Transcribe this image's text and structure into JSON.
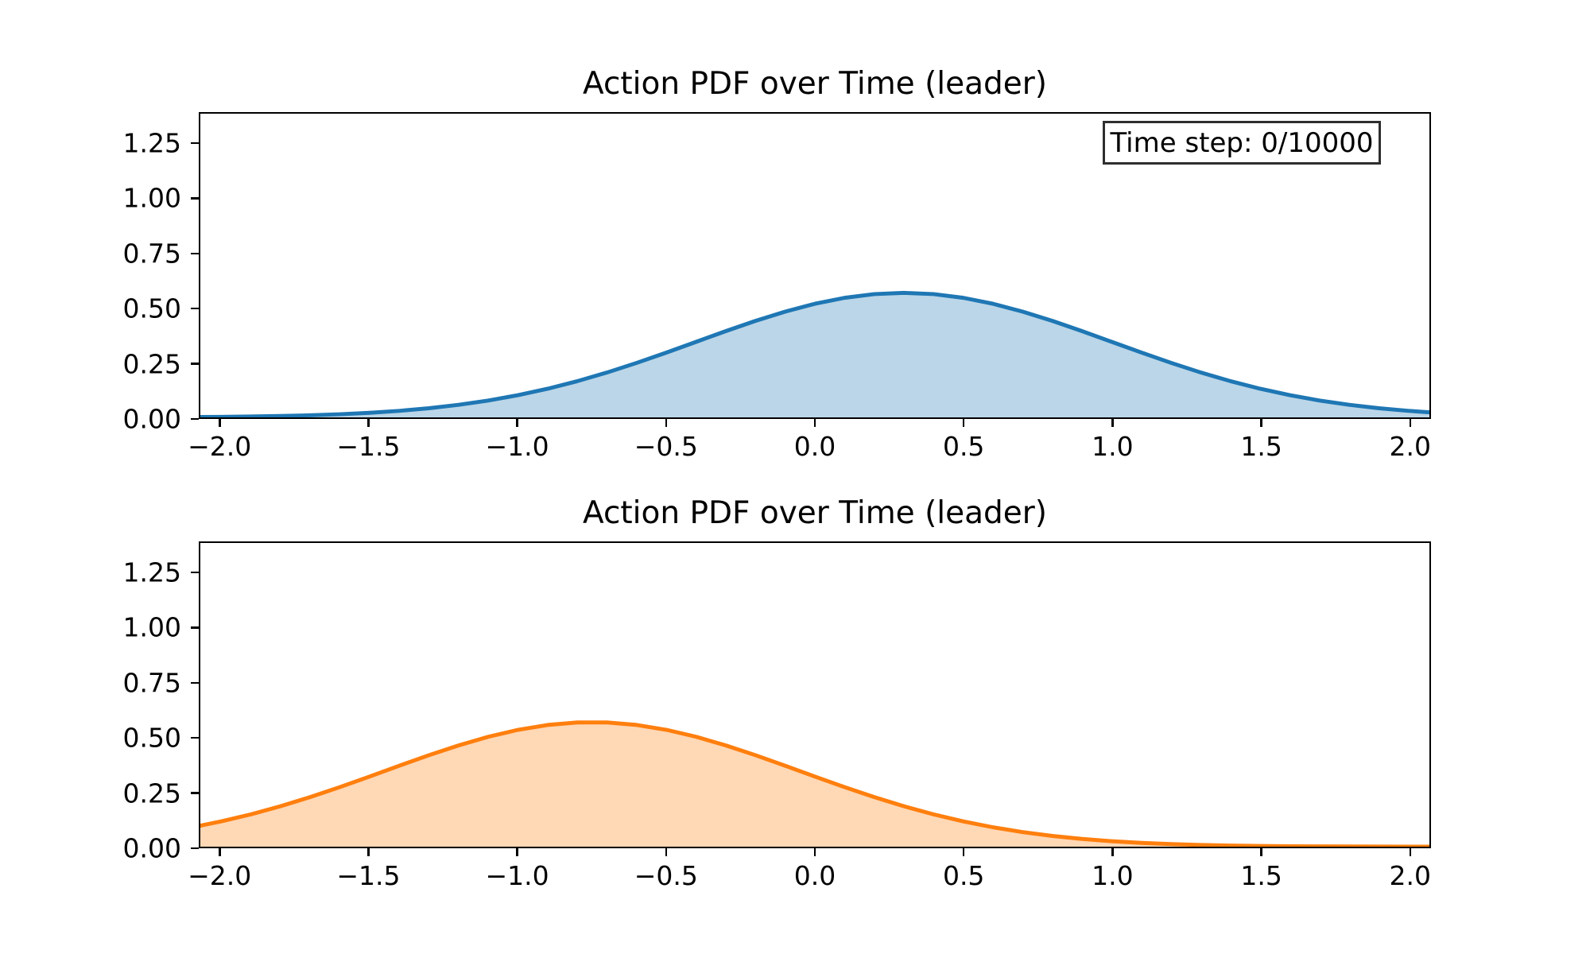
{
  "figure": {
    "background_color": "#ffffff",
    "text_color": "#000000",
    "spine_color": "#000000"
  },
  "annotation": {
    "time_step_label": "Time step: 0/10000"
  },
  "chart_data": [
    {
      "type": "area",
      "title": "Action PDF over Time (leader)",
      "xlabel": "",
      "ylabel": "",
      "xlim": [
        -2.07,
        2.07
      ],
      "ylim": [
        0,
        1.39
      ],
      "grid": false,
      "legend": null,
      "annotation": "Time step: 0/10000",
      "xticks": {
        "values": [
          -2.0,
          -1.5,
          -1.0,
          -0.5,
          0.0,
          0.5,
          1.0,
          1.5,
          2.0
        ],
        "labels": [
          "−2.0",
          "−1.5",
          "−1.0",
          "−0.5",
          "0.0",
          "0.5",
          "1.0",
          "1.5",
          "2.0"
        ]
      },
      "yticks": {
        "values": [
          0.0,
          0.25,
          0.5,
          0.75,
          1.0,
          1.25
        ],
        "labels": [
          "0.00",
          "0.25",
          "0.50",
          "0.75",
          "1.00",
          "1.25"
        ]
      },
      "series": [
        {
          "name": "leader-action-pdf-blue",
          "line_color": "#1f77b4",
          "fill_color": "#1f77b4",
          "fill_opacity": 0.3,
          "fit": {
            "distribution": "normal",
            "mean": 0.3,
            "std": 0.7,
            "peak": 0.57
          },
          "x": [
            -2.07,
            -2.0,
            -1.9,
            -1.8,
            -1.7,
            -1.6,
            -1.5,
            -1.4,
            -1.3,
            -1.2,
            -1.1,
            -1.0,
            -0.9,
            -0.8,
            -0.7,
            -0.6,
            -0.5,
            -0.4,
            -0.3,
            -0.2,
            -0.1,
            0.0,
            0.1,
            0.2,
            0.3,
            0.4,
            0.5,
            0.6,
            0.7,
            0.8,
            0.9,
            1.0,
            1.1,
            1.2,
            1.3,
            1.4,
            1.5,
            1.6,
            1.7,
            1.8,
            1.9,
            2.0,
            2.07
          ],
          "y": [
            0.0019,
            0.0026,
            0.0041,
            0.0063,
            0.0096,
            0.0143,
            0.0209,
            0.0299,
            0.0419,
            0.0574,
            0.0771,
            0.1016,
            0.1311,
            0.1658,
            0.2054,
            0.2494,
            0.2966,
            0.3457,
            0.3948,
            0.4416,
            0.4841,
            0.52,
            0.5472,
            0.5642,
            0.5699,
            0.5642,
            0.5472,
            0.52,
            0.4841,
            0.4416,
            0.3948,
            0.3457,
            0.2966,
            0.2494,
            0.2054,
            0.1658,
            0.1311,
            0.1016,
            0.0771,
            0.0574,
            0.0419,
            0.0299,
            0.0233
          ]
        }
      ]
    },
    {
      "type": "area",
      "title": "Action PDF over Time (leader)",
      "xlabel": "",
      "ylabel": "",
      "xlim": [
        -2.07,
        2.07
      ],
      "ylim": [
        0,
        1.39
      ],
      "grid": false,
      "legend": null,
      "annotation": null,
      "xticks": {
        "values": [
          -2.0,
          -1.5,
          -1.0,
          -0.5,
          0.0,
          0.5,
          1.0,
          1.5,
          2.0
        ],
        "labels": [
          "−2.0",
          "−1.5",
          "−1.0",
          "−0.5",
          "0.0",
          "0.5",
          "1.0",
          "1.5",
          "2.0"
        ]
      },
      "yticks": {
        "values": [
          0.0,
          0.25,
          0.5,
          0.75,
          1.0,
          1.25
        ],
        "labels": [
          "0.00",
          "0.25",
          "0.50",
          "0.75",
          "1.00",
          "1.25"
        ]
      },
      "series": [
        {
          "name": "leader-action-pdf-orange",
          "line_color": "#ff7f0e",
          "fill_color": "#ff7f0e",
          "fill_opacity": 0.3,
          "fit": {
            "distribution": "normal",
            "mean": -0.75,
            "std": 0.7,
            "peak": 0.57
          },
          "x": [
            -2.07,
            -2.0,
            -1.9,
            -1.8,
            -1.7,
            -1.6,
            -1.5,
            -1.4,
            -1.3,
            -1.2,
            -1.1,
            -1.0,
            -0.9,
            -0.8,
            -0.7,
            -0.6,
            -0.5,
            -0.4,
            -0.3,
            -0.2,
            -0.1,
            0.0,
            0.1,
            0.2,
            0.3,
            0.4,
            0.5,
            0.6,
            0.7,
            0.8,
            0.9,
            1.0,
            1.1,
            1.2,
            1.3,
            1.4,
            1.5,
            1.6,
            1.7,
            1.8,
            1.9,
            2.0,
            2.07
          ],
          "y": [
            0.0963,
            0.1158,
            0.1478,
            0.1851,
            0.227,
            0.2727,
            0.321,
            0.3704,
            0.4186,
            0.4636,
            0.503,
            0.5348,
            0.5571,
            0.5685,
            0.5685,
            0.5571,
            0.5348,
            0.503,
            0.4636,
            0.4186,
            0.3704,
            0.321,
            0.2727,
            0.227,
            0.1851,
            0.1478,
            0.1158,
            0.0887,
            0.0667,
            0.0491,
            0.0354,
            0.025,
            0.0173,
            0.0118,
            0.0078,
            0.0051,
            0.0033,
            0.0021,
            0.0013,
            0.0008,
            0.0004,
            0.0003,
            0.0002
          ]
        }
      ]
    }
  ]
}
